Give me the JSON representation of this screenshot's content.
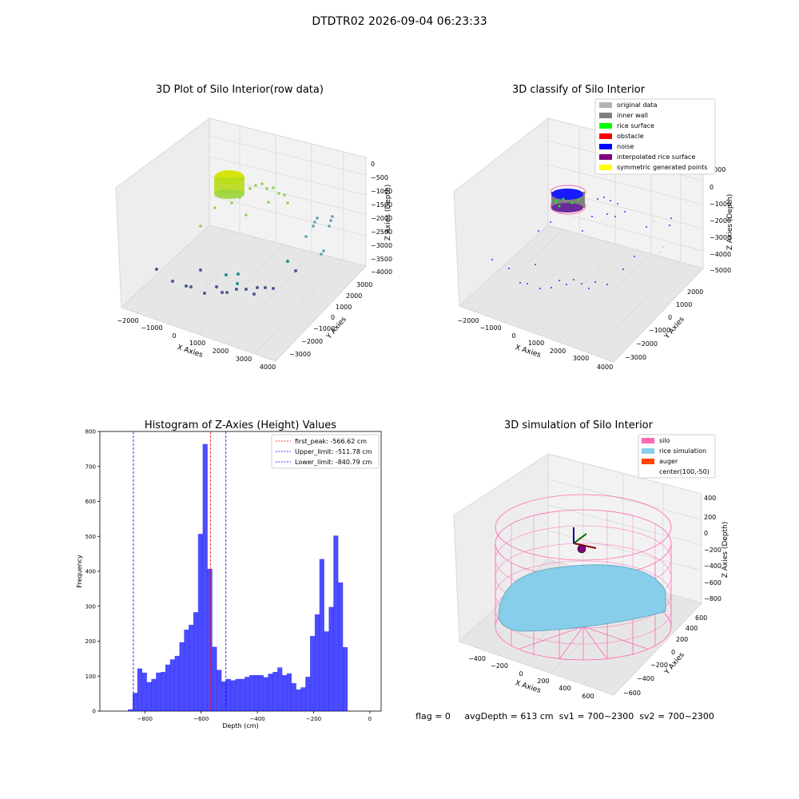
{
  "figure_title": "DTDTR02 2026-09-04 06:23:33",
  "panels": {
    "raw": {
      "title": "3D Plot of Silo Interior(row data)",
      "xlabel": "X Axies",
      "ylabel": "Y Axies",
      "zlabel": "Z Axies (Depth)",
      "xticks": [
        "−2000",
        "−1000",
        "0",
        "1000",
        "2000",
        "3000",
        "4000"
      ],
      "yticks": [
        "−3000",
        "−2000",
        "−1000",
        "0",
        "1000",
        "2000",
        "3000"
      ],
      "zticks": [
        "0",
        "−500",
        "−1000",
        "−1500",
        "−2000",
        "−2500",
        "−3000",
        "−3500",
        "−4000"
      ]
    },
    "classify": {
      "title": "3D classify of Silo Interior",
      "xlabel": "X Axies",
      "ylabel": "Y Axies",
      "zlabel": "Z Axies (Depth)",
      "xticks": [
        "−2000",
        "−1000",
        "0",
        "1000",
        "2000",
        "3000",
        "4000"
      ],
      "yticks": [
        "−3000",
        "−2000",
        "−1000",
        "0",
        "1000",
        "2000"
      ],
      "zticks": [
        "1000",
        "0",
        "−1000",
        "−2000",
        "−3000",
        "−4000",
        "−5000"
      ],
      "legend": [
        {
          "label": "original data",
          "color": "#b3b3b3"
        },
        {
          "label": "inner wall",
          "color": "#808080"
        },
        {
          "label": "rice surface",
          "color": "#00ff00"
        },
        {
          "label": "obstacle",
          "color": "#ff0000"
        },
        {
          "label": "noise",
          "color": "#0000ff"
        },
        {
          "label": "interpolated rice surface",
          "color": "#800080"
        },
        {
          "label": "symmetric generated points",
          "color": "#ffff00"
        }
      ]
    },
    "simulation": {
      "title": "3D simulation of Silo Interior",
      "xlabel": "X Axies",
      "ylabel": "Y Axies",
      "zlabel": "Z Axies (Depth)",
      "xticks": [
        "−400",
        "−200",
        "0",
        "200",
        "400",
        "600"
      ],
      "yticks": [
        "−600",
        "−400",
        "−200",
        "0",
        "200",
        "400",
        "600"
      ],
      "zticks": [
        "400",
        "200",
        "0",
        "−200",
        "−400",
        "−600",
        "−800"
      ],
      "legend": [
        {
          "label": "silo",
          "color": "#ff69b4"
        },
        {
          "label": "rice simulation",
          "color": "#87ceeb"
        },
        {
          "label": "auger",
          "color": "#ff4500"
        },
        {
          "label": "center(100,-50)",
          "color": ""
        }
      ],
      "status_text": "flag = 0     avgDepth = 613 cm  sv1 = 700~2300  sv2 = 700~2300"
    }
  },
  "chart_data": {
    "type": "bar",
    "title": "Histogram of Z-Axies (Height) Values",
    "xlabel": "Depth (cm)",
    "ylabel": "Frequency",
    "xlim": [
      -960,
      40
    ],
    "ylim": [
      0,
      800
    ],
    "xticks": [
      -800,
      -600,
      -400,
      -200,
      0
    ],
    "xtick_labels": [
      "−800",
      "−600",
      "−400",
      "−200",
      "0"
    ],
    "yticks": [
      0,
      100,
      200,
      300,
      400,
      500,
      600,
      700,
      800
    ],
    "bin_width": 16.6,
    "bin_start": -860,
    "values": [
      5,
      52,
      122,
      110,
      83,
      92,
      110,
      112,
      133,
      148,
      158,
      197,
      233,
      247,
      283,
      507,
      764,
      407,
      184,
      118,
      85,
      92,
      88,
      92,
      92,
      98,
      103,
      103,
      103,
      97,
      107,
      112,
      125,
      103,
      108,
      80,
      62,
      68,
      98,
      215,
      277,
      435,
      228,
      298,
      502,
      368,
      183
    ],
    "color": "#0000ff",
    "lines": [
      {
        "label": "first_peak: -566.62 cm",
        "x": -566.62,
        "color": "#ff0000"
      },
      {
        "label": "Upper_limit: -511.78 cm",
        "x": -511.78,
        "color": "#0000ff"
      },
      {
        "label": "Lower_limit: -840.79 cm",
        "x": -840.79,
        "color": "#0000ff"
      }
    ],
    "legend_position": "top-right"
  }
}
